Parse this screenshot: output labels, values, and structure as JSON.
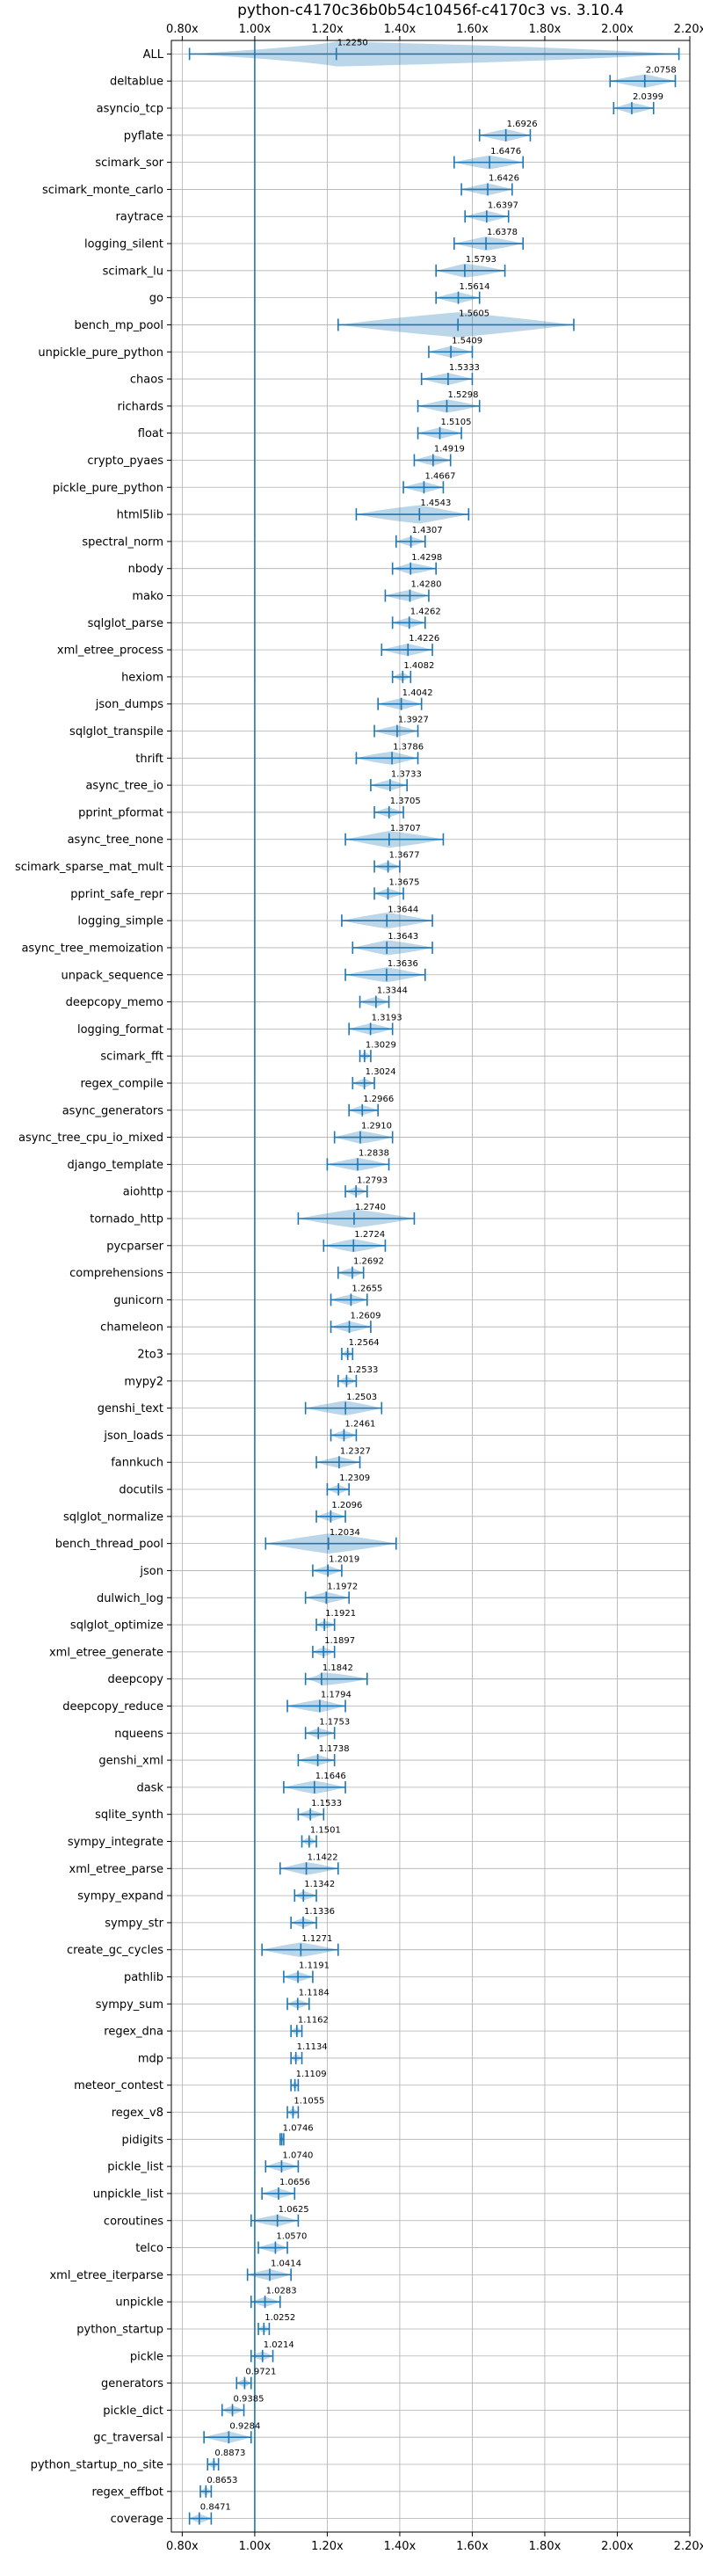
{
  "chart_data": {
    "type": "violin",
    "title": "python-c4170c36b0b54c10456f-c4170c3 vs. 3.10.4",
    "xlim": [
      0.77,
      2.2
    ],
    "xticks": [
      "0.80x",
      "1.00x",
      "1.20x",
      "1.40x",
      "1.60x",
      "1.80x",
      "2.00x",
      "2.20x"
    ],
    "xtick_values": [
      0.8,
      1.0,
      1.2,
      1.4,
      1.6,
      1.8,
      2.0,
      2.2
    ],
    "reference_line": 1.0,
    "grid": true,
    "color": "#1f77b4",
    "benchmarks": [
      {
        "name": "ALL",
        "value": "1.2250",
        "median": 1.225,
        "min": 0.82,
        "max": 2.17
      },
      {
        "name": "deltablue",
        "value": "2.0758",
        "median": 2.0758,
        "min": 1.98,
        "max": 2.16
      },
      {
        "name": "asyncio_tcp",
        "value": "2.0399",
        "median": 2.0399,
        "min": 1.99,
        "max": 2.1
      },
      {
        "name": "pyflate",
        "value": "1.6926",
        "median": 1.6926,
        "min": 1.62,
        "max": 1.76
      },
      {
        "name": "scimark_sor",
        "value": "1.6476",
        "median": 1.6476,
        "min": 1.55,
        "max": 1.74
      },
      {
        "name": "scimark_monte_carlo",
        "value": "1.6426",
        "median": 1.6426,
        "min": 1.57,
        "max": 1.71
      },
      {
        "name": "raytrace",
        "value": "1.6397",
        "median": 1.6397,
        "min": 1.58,
        "max": 1.7
      },
      {
        "name": "logging_silent",
        "value": "1.6378",
        "median": 1.6378,
        "min": 1.55,
        "max": 1.74
      },
      {
        "name": "scimark_lu",
        "value": "1.5793",
        "median": 1.5793,
        "min": 1.5,
        "max": 1.69
      },
      {
        "name": "go",
        "value": "1.5614",
        "median": 1.5614,
        "min": 1.5,
        "max": 1.62
      },
      {
        "name": "bench_mp_pool",
        "value": "1.5605",
        "median": 1.5605,
        "min": 1.23,
        "max": 1.88
      },
      {
        "name": "unpickle_pure_python",
        "value": "1.5409",
        "median": 1.5409,
        "min": 1.48,
        "max": 1.6
      },
      {
        "name": "chaos",
        "value": "1.5333",
        "median": 1.5333,
        "min": 1.46,
        "max": 1.6
      },
      {
        "name": "richards",
        "value": "1.5298",
        "median": 1.5298,
        "min": 1.45,
        "max": 1.62
      },
      {
        "name": "float",
        "value": "1.5105",
        "median": 1.5105,
        "min": 1.45,
        "max": 1.57
      },
      {
        "name": "crypto_pyaes",
        "value": "1.4919",
        "median": 1.4919,
        "min": 1.44,
        "max": 1.54
      },
      {
        "name": "pickle_pure_python",
        "value": "1.4667",
        "median": 1.4667,
        "min": 1.41,
        "max": 1.52
      },
      {
        "name": "html5lib",
        "value": "1.4543",
        "median": 1.4543,
        "min": 1.28,
        "max": 1.59
      },
      {
        "name": "spectral_norm",
        "value": "1.4307",
        "median": 1.4307,
        "min": 1.39,
        "max": 1.47
      },
      {
        "name": "nbody",
        "value": "1.4298",
        "median": 1.4298,
        "min": 1.38,
        "max": 1.5
      },
      {
        "name": "mako",
        "value": "1.4280",
        "median": 1.428,
        "min": 1.36,
        "max": 1.48
      },
      {
        "name": "sqlglot_parse",
        "value": "1.4262",
        "median": 1.4262,
        "min": 1.38,
        "max": 1.47
      },
      {
        "name": "xml_etree_process",
        "value": "1.4226",
        "median": 1.4226,
        "min": 1.35,
        "max": 1.49
      },
      {
        "name": "hexiom",
        "value": "1.4082",
        "median": 1.4082,
        "min": 1.38,
        "max": 1.43
      },
      {
        "name": "json_dumps",
        "value": "1.4042",
        "median": 1.4042,
        "min": 1.34,
        "max": 1.46
      },
      {
        "name": "sqlglot_transpile",
        "value": "1.3927",
        "median": 1.3927,
        "min": 1.33,
        "max": 1.45
      },
      {
        "name": "thrift",
        "value": "1.3786",
        "median": 1.3786,
        "min": 1.28,
        "max": 1.45
      },
      {
        "name": "async_tree_io",
        "value": "1.3733",
        "median": 1.3733,
        "min": 1.32,
        "max": 1.42
      },
      {
        "name": "pprint_pformat",
        "value": "1.3705",
        "median": 1.3705,
        "min": 1.33,
        "max": 1.41
      },
      {
        "name": "async_tree_none",
        "value": "1.3707",
        "median": 1.3707,
        "min": 1.25,
        "max": 1.52
      },
      {
        "name": "scimark_sparse_mat_mult",
        "value": "1.3677",
        "median": 1.3677,
        "min": 1.33,
        "max": 1.4
      },
      {
        "name": "pprint_safe_repr",
        "value": "1.3675",
        "median": 1.3675,
        "min": 1.33,
        "max": 1.41
      },
      {
        "name": "logging_simple",
        "value": "1.3644",
        "median": 1.3644,
        "min": 1.24,
        "max": 1.49
      },
      {
        "name": "async_tree_memoization",
        "value": "1.3643",
        "median": 1.3643,
        "min": 1.27,
        "max": 1.49
      },
      {
        "name": "unpack_sequence",
        "value": "1.3636",
        "median": 1.3636,
        "min": 1.25,
        "max": 1.47
      },
      {
        "name": "deepcopy_memo",
        "value": "1.3344",
        "median": 1.3344,
        "min": 1.29,
        "max": 1.37
      },
      {
        "name": "logging_format",
        "value": "1.3193",
        "median": 1.3193,
        "min": 1.26,
        "max": 1.38
      },
      {
        "name": "scimark_fft",
        "value": "1.3029",
        "median": 1.3029,
        "min": 1.29,
        "max": 1.32
      },
      {
        "name": "regex_compile",
        "value": "1.3024",
        "median": 1.3024,
        "min": 1.27,
        "max": 1.33
      },
      {
        "name": "async_generators",
        "value": "1.2966",
        "median": 1.2966,
        "min": 1.26,
        "max": 1.34
      },
      {
        "name": "async_tree_cpu_io_mixed",
        "value": "1.2910",
        "median": 1.291,
        "min": 1.22,
        "max": 1.38
      },
      {
        "name": "django_template",
        "value": "1.2838",
        "median": 1.2838,
        "min": 1.2,
        "max": 1.37
      },
      {
        "name": "aiohttp",
        "value": "1.2793",
        "median": 1.2793,
        "min": 1.25,
        "max": 1.31
      },
      {
        "name": "tornado_http",
        "value": "1.2740",
        "median": 1.274,
        "min": 1.12,
        "max": 1.44
      },
      {
        "name": "pycparser",
        "value": "1.2724",
        "median": 1.2724,
        "min": 1.19,
        "max": 1.36
      },
      {
        "name": "comprehensions",
        "value": "1.2692",
        "median": 1.2692,
        "min": 1.23,
        "max": 1.3
      },
      {
        "name": "gunicorn",
        "value": "1.2655",
        "median": 1.2655,
        "min": 1.21,
        "max": 1.31
      },
      {
        "name": "chameleon",
        "value": "1.2609",
        "median": 1.2609,
        "min": 1.21,
        "max": 1.32
      },
      {
        "name": "2to3",
        "value": "1.2564",
        "median": 1.2564,
        "min": 1.24,
        "max": 1.27
      },
      {
        "name": "mypy2",
        "value": "1.2533",
        "median": 1.2533,
        "min": 1.23,
        "max": 1.28
      },
      {
        "name": "genshi_text",
        "value": "1.2503",
        "median": 1.2503,
        "min": 1.14,
        "max": 1.35
      },
      {
        "name": "json_loads",
        "value": "1.2461",
        "median": 1.2461,
        "min": 1.21,
        "max": 1.28
      },
      {
        "name": "fannkuch",
        "value": "1.2327",
        "median": 1.2327,
        "min": 1.17,
        "max": 1.29
      },
      {
        "name": "docutils",
        "value": "1.2309",
        "median": 1.2309,
        "min": 1.2,
        "max": 1.26
      },
      {
        "name": "sqlglot_normalize",
        "value": "1.2096",
        "median": 1.2096,
        "min": 1.17,
        "max": 1.25
      },
      {
        "name": "bench_thread_pool",
        "value": "1.2034",
        "median": 1.2034,
        "min": 1.03,
        "max": 1.39
      },
      {
        "name": "json",
        "value": "1.2019",
        "median": 1.2019,
        "min": 1.16,
        "max": 1.24
      },
      {
        "name": "dulwich_log",
        "value": "1.1972",
        "median": 1.1972,
        "min": 1.14,
        "max": 1.26
      },
      {
        "name": "sqlglot_optimize",
        "value": "1.1921",
        "median": 1.1921,
        "min": 1.17,
        "max": 1.22
      },
      {
        "name": "xml_etree_generate",
        "value": "1.1897",
        "median": 1.1897,
        "min": 1.16,
        "max": 1.22
      },
      {
        "name": "deepcopy",
        "value": "1.1842",
        "median": 1.1842,
        "min": 1.14,
        "max": 1.31
      },
      {
        "name": "deepcopy_reduce",
        "value": "1.1794",
        "median": 1.1794,
        "min": 1.09,
        "max": 1.25
      },
      {
        "name": "nqueens",
        "value": "1.1753",
        "median": 1.1753,
        "min": 1.14,
        "max": 1.22
      },
      {
        "name": "genshi_xml",
        "value": "1.1738",
        "median": 1.1738,
        "min": 1.12,
        "max": 1.22
      },
      {
        "name": "dask",
        "value": "1.1646",
        "median": 1.1646,
        "min": 1.08,
        "max": 1.25
      },
      {
        "name": "sqlite_synth",
        "value": "1.1533",
        "median": 1.1533,
        "min": 1.12,
        "max": 1.19
      },
      {
        "name": "sympy_integrate",
        "value": "1.1501",
        "median": 1.1501,
        "min": 1.13,
        "max": 1.17
      },
      {
        "name": "xml_etree_parse",
        "value": "1.1422",
        "median": 1.1422,
        "min": 1.07,
        "max": 1.23
      },
      {
        "name": "sympy_expand",
        "value": "1.1342",
        "median": 1.1342,
        "min": 1.11,
        "max": 1.17
      },
      {
        "name": "sympy_str",
        "value": "1.1336",
        "median": 1.1336,
        "min": 1.1,
        "max": 1.17
      },
      {
        "name": "create_gc_cycles",
        "value": "1.1271",
        "median": 1.1271,
        "min": 1.02,
        "max": 1.23
      },
      {
        "name": "pathlib",
        "value": "1.1191",
        "median": 1.1191,
        "min": 1.08,
        "max": 1.16
      },
      {
        "name": "sympy_sum",
        "value": "1.1184",
        "median": 1.1184,
        "min": 1.09,
        "max": 1.15
      },
      {
        "name": "regex_dna",
        "value": "1.1162",
        "median": 1.1162,
        "min": 1.1,
        "max": 1.13
      },
      {
        "name": "mdp",
        "value": "1.1134",
        "median": 1.1134,
        "min": 1.1,
        "max": 1.13
      },
      {
        "name": "meteor_contest",
        "value": "1.1109",
        "median": 1.1109,
        "min": 1.1,
        "max": 1.12
      },
      {
        "name": "regex_v8",
        "value": "1.1055",
        "median": 1.1055,
        "min": 1.09,
        "max": 1.12
      },
      {
        "name": "pidigits",
        "value": "1.0746",
        "median": 1.0746,
        "min": 1.07,
        "max": 1.08
      },
      {
        "name": "pickle_list",
        "value": "1.0740",
        "median": 1.074,
        "min": 1.03,
        "max": 1.12
      },
      {
        "name": "unpickle_list",
        "value": "1.0656",
        "median": 1.0656,
        "min": 1.02,
        "max": 1.11
      },
      {
        "name": "coroutines",
        "value": "1.0625",
        "median": 1.0625,
        "min": 0.99,
        "max": 1.12
      },
      {
        "name": "telco",
        "value": "1.0570",
        "median": 1.057,
        "min": 1.01,
        "max": 1.09
      },
      {
        "name": "xml_etree_iterparse",
        "value": "1.0414",
        "median": 1.0414,
        "min": 0.98,
        "max": 1.1
      },
      {
        "name": "unpickle",
        "value": "1.0283",
        "median": 1.0283,
        "min": 0.99,
        "max": 1.07
      },
      {
        "name": "python_startup",
        "value": "1.0252",
        "median": 1.0252,
        "min": 1.01,
        "max": 1.04
      },
      {
        "name": "pickle",
        "value": "1.0214",
        "median": 1.0214,
        "min": 0.99,
        "max": 1.05
      },
      {
        "name": "generators",
        "value": "0.9721",
        "median": 0.9721,
        "min": 0.95,
        "max": 0.99
      },
      {
        "name": "pickle_dict",
        "value": "0.9385",
        "median": 0.9385,
        "min": 0.91,
        "max": 0.97
      },
      {
        "name": "gc_traversal",
        "value": "0.9284",
        "median": 0.9284,
        "min": 0.86,
        "max": 0.99
      },
      {
        "name": "python_startup_no_site",
        "value": "0.8873",
        "median": 0.8873,
        "min": 0.87,
        "max": 0.9
      },
      {
        "name": "regex_effbot",
        "value": "0.8653",
        "median": 0.8653,
        "min": 0.85,
        "max": 0.88
      },
      {
        "name": "coverage",
        "value": "0.8471",
        "median": 0.8471,
        "min": 0.82,
        "max": 0.88
      }
    ]
  }
}
